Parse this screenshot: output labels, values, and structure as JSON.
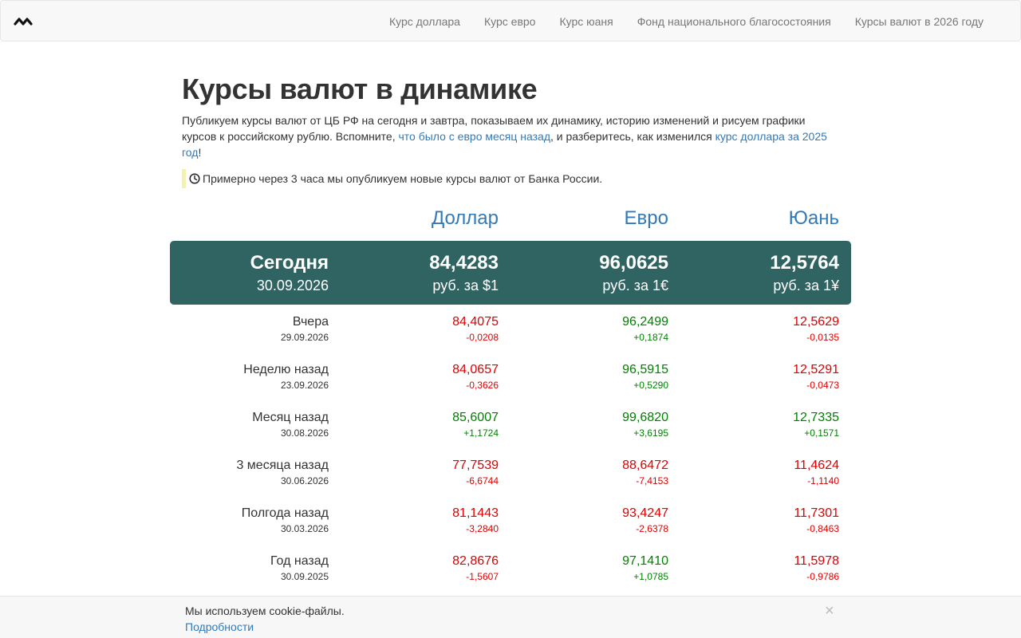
{
  "nav": {
    "logo_icon": "wave-logo-icon",
    "links": [
      {
        "label": "Курс доллара"
      },
      {
        "label": "Курс евро"
      },
      {
        "label": "Курс юаня"
      },
      {
        "label": "Фонд национального благосостояния"
      },
      {
        "label": "Курсы валют в 2026 году"
      }
    ]
  },
  "page": {
    "title": "Курсы валют в динамике",
    "lead_part1": "Публикуем курсы валют от ЦБ РФ на сегодня и завтра, показываем их динамику, историю изменений и рисуем графики курсов к российскому рублю. Вспомните, ",
    "lead_link1": "что было с евро месяц назад",
    "lead_part2": ", и разберитесь, как изменился ",
    "lead_link2": "курс доллара за 2025 год",
    "lead_part3": "!",
    "notice_icon": "clock-icon",
    "notice": "Примерно через 3 часа мы опубликуем новые курсы валют от Банка России."
  },
  "currencies": [
    "Доллар",
    "Евро",
    "Юань"
  ],
  "today": {
    "label": "Сегодня",
    "date": "30.09.2026",
    "values": [
      "84,4283",
      "96,0625",
      "12,5764"
    ],
    "units": [
      "руб. за $1",
      "руб. за 1€",
      "руб. за 1¥"
    ]
  },
  "history": [
    {
      "label": "Вчера",
      "date": "29.09.2026",
      "values": [
        {
          "v": "84,4075",
          "d": "-0,0208",
          "dir": "down"
        },
        {
          "v": "96,2499",
          "d": "+0,1874",
          "dir": "up"
        },
        {
          "v": "12,5629",
          "d": "-0,0135",
          "dir": "down"
        }
      ]
    },
    {
      "label": "Неделю назад",
      "date": "23.09.2026",
      "values": [
        {
          "v": "84,0657",
          "d": "-0,3626",
          "dir": "down"
        },
        {
          "v": "96,5915",
          "d": "+0,5290",
          "dir": "up"
        },
        {
          "v": "12,5291",
          "d": "-0,0473",
          "dir": "down"
        }
      ]
    },
    {
      "label": "Месяц назад",
      "date": "30.08.2026",
      "values": [
        {
          "v": "85,6007",
          "d": "+1,1724",
          "dir": "up"
        },
        {
          "v": "99,6820",
          "d": "+3,6195",
          "dir": "up"
        },
        {
          "v": "12,7335",
          "d": "+0,1571",
          "dir": "up"
        }
      ]
    },
    {
      "label": "3 месяца назад",
      "date": "30.06.2026",
      "values": [
        {
          "v": "77,7539",
          "d": "-6,6744",
          "dir": "down"
        },
        {
          "v": "88,6472",
          "d": "-7,4153",
          "dir": "down"
        },
        {
          "v": "11,4624",
          "d": "-1,1140",
          "dir": "down"
        }
      ]
    },
    {
      "label": "Полгода назад",
      "date": "30.03.2026",
      "values": [
        {
          "v": "81,1443",
          "d": "-3,2840",
          "dir": "down"
        },
        {
          "v": "93,4247",
          "d": "-2,6378",
          "dir": "down"
        },
        {
          "v": "11,7301",
          "d": "-0,8463",
          "dir": "down"
        }
      ]
    },
    {
      "label": "Год назад",
      "date": "30.09.2025",
      "values": [
        {
          "v": "82,8676",
          "d": "-1,5607",
          "dir": "down"
        },
        {
          "v": "97,1410",
          "d": "+1,0785",
          "dir": "up"
        },
        {
          "v": "11,5978",
          "d": "-0,9786",
          "dir": "down"
        }
      ]
    }
  ],
  "colors": {
    "today_bg": "#306463",
    "up": "#008000",
    "down": "#e00000",
    "link": "#337ab7"
  },
  "cookie": {
    "text": "Мы используем cookie-файлы.",
    "link": "Подробности",
    "close": "×"
  }
}
